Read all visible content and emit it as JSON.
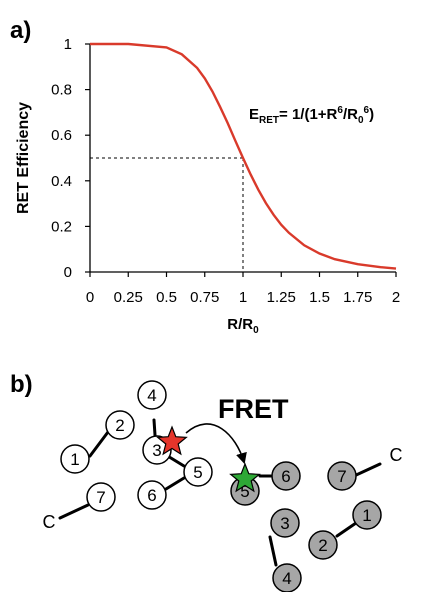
{
  "panel_a": {
    "label": "a)",
    "formula": {
      "lhs": "E",
      "lhs_sub": "RET",
      "eq": "= 1/(1+R",
      "sup1": "6",
      "mid": "/R",
      "sub0": "0",
      "sup2": "6",
      "end": ")"
    }
  },
  "panel_b": {
    "label": "b)",
    "fret_label": "FRET",
    "donor_color": "#e5352b",
    "acceptor_color": "#2ea836",
    "acceptor_bead_fill": "#a6a6a6",
    "donor_chain": {
      "terminus": "C",
      "beads": [
        "1",
        "2",
        "3",
        "4",
        "5",
        "6",
        "7"
      ]
    },
    "acceptor_chain": {
      "terminus": "C",
      "beads": [
        "1",
        "2",
        "3",
        "4",
        "5",
        "6",
        "7"
      ]
    }
  },
  "chart_data": {
    "type": "line",
    "xlabel": "R/R",
    "xlabel_sub": "0",
    "ylabel": "RET Efficiency",
    "xlim": [
      0,
      2
    ],
    "ylim": [
      0,
      1
    ],
    "xticks": [
      "0",
      "0.25",
      "0.5",
      "0.75",
      "1",
      "1.25",
      "1.5",
      "1.75",
      "2"
    ],
    "yticks": [
      "0",
      "0.2",
      "0.4",
      "0.6",
      "0.8",
      "1"
    ],
    "grid": false,
    "line_color": "#d93a2b",
    "series": [
      {
        "x": [
          0,
          0.25,
          0.5,
          0.6,
          0.7,
          0.75,
          0.8,
          0.85,
          0.9,
          0.95,
          1.0,
          1.05,
          1.1,
          1.15,
          1.2,
          1.25,
          1.3,
          1.4,
          1.5,
          1.6,
          1.75,
          1.9,
          2.0
        ],
        "y": [
          1.0,
          1.0,
          0.985,
          0.955,
          0.895,
          0.849,
          0.792,
          0.725,
          0.653,
          0.576,
          0.5,
          0.427,
          0.361,
          0.302,
          0.251,
          0.207,
          0.172,
          0.117,
          0.081,
          0.056,
          0.034,
          0.021,
          0.015
        ]
      }
    ],
    "reference_point": {
      "x": 1,
      "y": 0.5
    }
  }
}
